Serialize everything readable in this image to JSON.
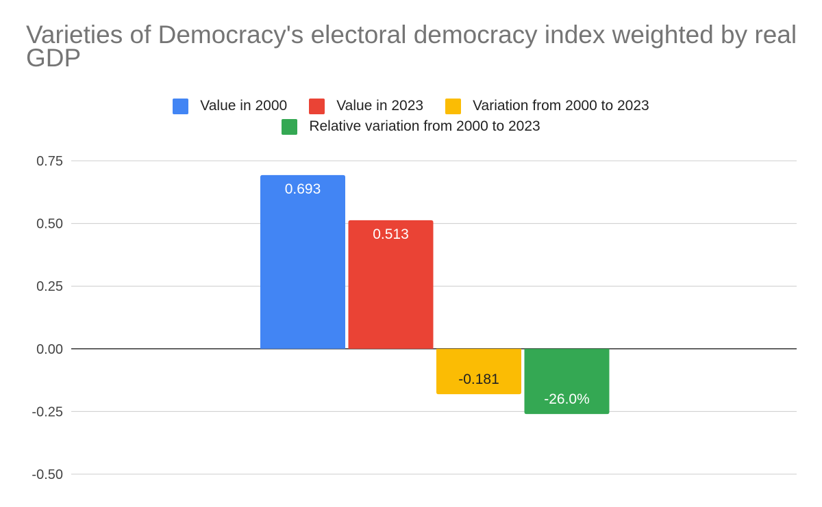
{
  "chart_data": {
    "type": "bar",
    "title": "Varieties of Democracy's electoral democracy index weighted by real GDP",
    "categories": [
      ""
    ],
    "series": [
      {
        "name": "Value in 2000",
        "values": [
          0.693
        ],
        "label": "0.693",
        "color": "#4285F4",
        "label_color": "#ffffff"
      },
      {
        "name": "Value in 2023",
        "values": [
          0.513
        ],
        "label": "0.513",
        "color": "#EA4335",
        "label_color": "#ffffff"
      },
      {
        "name": "Variation from 2000 to 2023",
        "values": [
          -0.181
        ],
        "label": "-0.181",
        "color": "#FBBC04",
        "label_color": "#222222"
      },
      {
        "name": "Relative variation from 2000 to 2023",
        "values": [
          -0.26
        ],
        "label": "-26.0%",
        "color": "#34A853",
        "label_color": "#ffffff"
      }
    ],
    "ylim": [
      -0.5,
      0.75
    ],
    "yticks": [
      0.75,
      0.5,
      0.25,
      0.0,
      -0.25,
      -0.5
    ],
    "ytick_labels": [
      "0.75",
      "0.50",
      "0.25",
      "0.00",
      "-0.25",
      "-0.50"
    ],
    "xlabel": "",
    "ylabel": "",
    "grid": true,
    "legend_position": "top"
  }
}
